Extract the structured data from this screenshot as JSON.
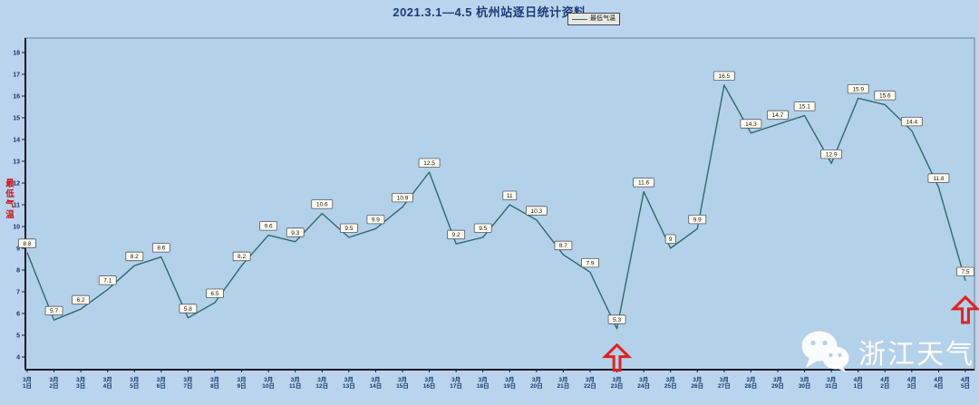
{
  "watermark": {
    "text": "浙江天气",
    "icon": "wechat-logo"
  },
  "chart_data": {
    "type": "line",
    "title": "2021.3.1—4.5 杭州站逐日统计资料",
    "legend": "最低气温",
    "legend_position": "top-right",
    "ylabel": "最低气温",
    "xlabel": "",
    "ylim": [
      4,
      18
    ],
    "y_tick_step": 1,
    "grid": false,
    "categories": [
      "3月1日",
      "3月2日",
      "3月3日",
      "3月4日",
      "3月5日",
      "3月6日",
      "3月7日",
      "3月8日",
      "3月9日",
      "3月10日",
      "3月11日",
      "3月12日",
      "3月13日",
      "3月14日",
      "3月15日",
      "3月16日",
      "3月17日",
      "3月18日",
      "3月19日",
      "3月20日",
      "3月21日",
      "3月22日",
      "3月23日",
      "3月24日",
      "3月25日",
      "3月26日",
      "3月27日",
      "3月28日",
      "3月29日",
      "3月30日",
      "3月31日",
      "4月1日",
      "4月2日",
      "4月3日",
      "4月4日",
      "4月5日"
    ],
    "series": [
      {
        "name": "最低气温",
        "values": [
          8.8,
          5.7,
          6.2,
          7.1,
          8.2,
          8.6,
          5.8,
          6.5,
          8.2,
          9.6,
          9.3,
          10.6,
          9.5,
          9.9,
          10.9,
          12.5,
          9.2,
          9.5,
          11,
          10.3,
          8.7,
          7.9,
          5.3,
          11.6,
          9,
          9.9,
          16.5,
          14.3,
          14.7,
          15.1,
          12.9,
          15.9,
          15.6,
          14.4,
          11.8,
          7.5
        ]
      }
    ],
    "data_labels": true,
    "annotations": [
      {
        "category": "3月23日",
        "value": 5.3,
        "marker": "red-up-arrow"
      },
      {
        "category": "4月5日",
        "value": 7.5,
        "marker": "red-up-arrow"
      }
    ],
    "colors": {
      "background": "#b9d4ec",
      "plot_background": "#b4d1ea",
      "line": "#2f6b6b",
      "axis": "#1a1a2a",
      "tick_text": "#17386a",
      "label_box_bg": "#fffff2",
      "label_box_border": "#55555f",
      "arrow": "#df2121",
      "title_text": "#1e3a7a",
      "y_axis_title_text": "#cf1414"
    }
  }
}
